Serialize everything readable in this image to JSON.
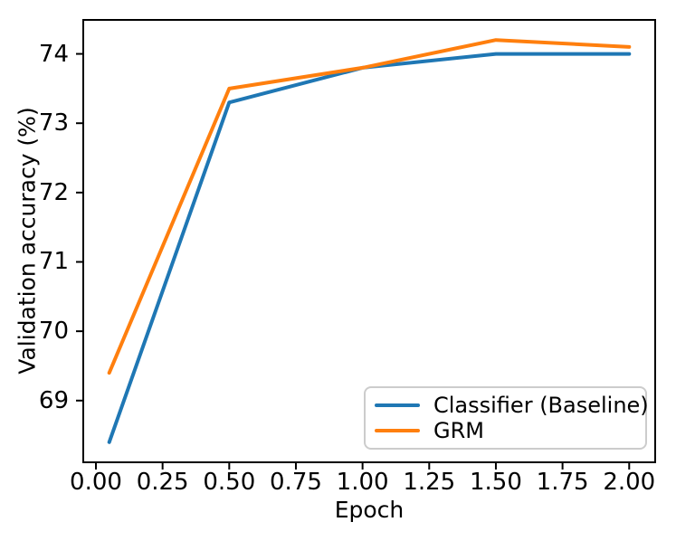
{
  "chart_data": {
    "type": "line",
    "title": "",
    "xlabel": "Epoch",
    "ylabel": "Validation accuracy (%)",
    "x": [
      0.05,
      0.5,
      1.0,
      1.5,
      2.0
    ],
    "series": [
      {
        "name": "Classifier (Baseline)",
        "color": "#1f77b4",
        "values": [
          68.4,
          73.3,
          73.8,
          74.0,
          74.0
        ]
      },
      {
        "name": "GRM",
        "color": "#ff7f0e",
        "values": [
          69.4,
          73.5,
          73.8,
          74.2,
          74.1
        ]
      }
    ],
    "xlim": [
      -0.0475,
      2.0975
    ],
    "ylim": [
      68.11,
      74.49
    ],
    "xticks": {
      "values": [
        0,
        0.25,
        0.5,
        0.75,
        1.0,
        1.25,
        1.5,
        1.75,
        2.0
      ],
      "labels": [
        "0.00",
        "0.25",
        "0.50",
        "0.75",
        "1.00",
        "1.25",
        "1.50",
        "1.75",
        "2.00"
      ]
    },
    "yticks": {
      "values": [
        69,
        70,
        71,
        72,
        73,
        74
      ],
      "labels": [
        "69",
        "70",
        "71",
        "72",
        "73",
        "74"
      ]
    },
    "legend": {
      "position": "lower right",
      "entries": [
        "Classifier (Baseline)",
        "GRM"
      ]
    },
    "grid": false,
    "colors": {
      "axis": "#000000",
      "legend_border": "#cccccc",
      "background": "#ffffff"
    }
  }
}
